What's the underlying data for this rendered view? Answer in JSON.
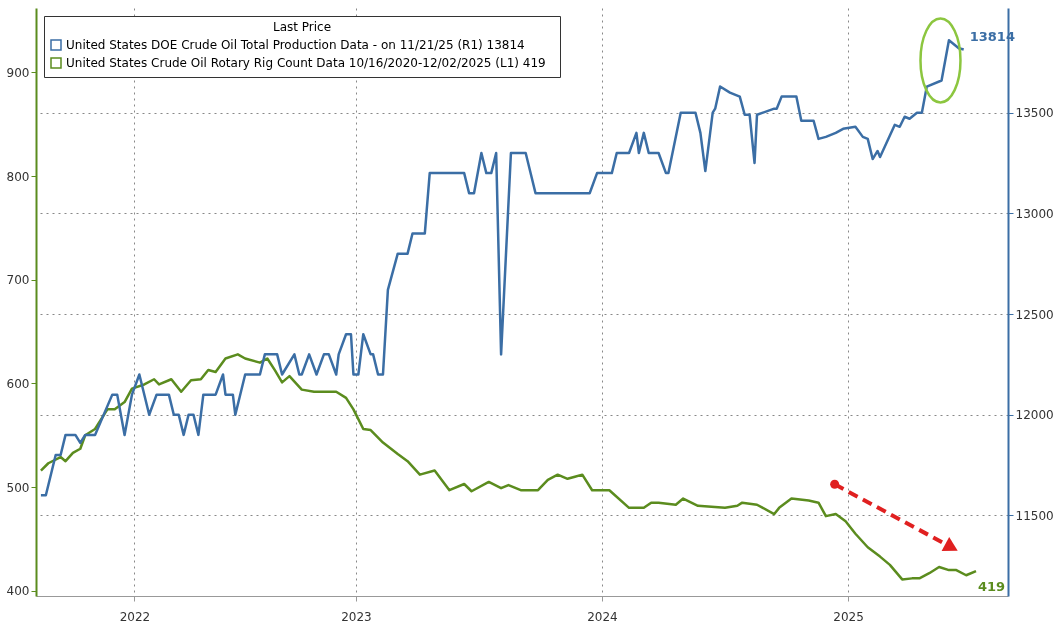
{
  "chart_data": {
    "type": "line",
    "legend_title": "Last Price",
    "legend": "top left",
    "grid": true,
    "xlim": [
      2022.1,
      2026.05
    ],
    "xticks": [
      {
        "value": 2022.5,
        "label": "2022"
      },
      {
        "value": 2023.4,
        "label": "2023"
      },
      {
        "value": 2024.4,
        "label": "2024"
      },
      {
        "value": 2025.4,
        "label": "2025"
      }
    ],
    "ylim": [
      395,
      962
    ],
    "yticks": [
      400,
      500,
      600,
      700,
      800,
      900
    ],
    "y2lim": [
      11100,
      14020
    ],
    "y2ticks": [
      11500,
      12000,
      12500,
      13000,
      13500
    ],
    "series": [
      {
        "name": "United States DOE Crude Oil Total Production Data -  on 11/21/25  (R1)   13814",
        "color": "#3b6ea5",
        "axis": "y2",
        "x": [
          2022.12,
          2022.14,
          2022.18,
          2022.2,
          2022.22,
          2022.26,
          2022.28,
          2022.3,
          2022.34,
          2022.41,
          2022.43,
          2022.46,
          2022.49,
          2022.52,
          2022.56,
          2022.59,
          2022.64,
          2022.66,
          2022.68,
          2022.7,
          2022.72,
          2022.74,
          2022.76,
          2022.78,
          2022.83,
          2022.86,
          2022.87,
          2022.9,
          2022.91,
          2022.95,
          2023.01,
          2023.03,
          2023.08,
          2023.1,
          2023.15,
          2023.17,
          2023.18,
          2023.21,
          2023.24,
          2023.27,
          2023.29,
          2023.32,
          2023.33,
          2023.36,
          2023.38,
          2023.39,
          2023.41,
          2023.43,
          2023.46,
          2023.47,
          2023.49,
          2023.51,
          2023.53,
          2023.57,
          2023.61,
          2023.63,
          2023.68,
          2023.7,
          2023.84,
          2023.86,
          2023.88,
          2023.91,
          2023.93,
          2023.95,
          2023.97,
          2023.99,
          2024.03,
          2024.07,
          2024.09,
          2024.13,
          2024.35,
          2024.38,
          2024.44,
          2024.46,
          2024.51,
          2024.54,
          2024.55,
          2024.57,
          2024.59,
          2024.63,
          2024.66,
          2024.67,
          2024.72,
          2024.78,
          2024.8,
          2024.82,
          2024.85,
          2024.86,
          2024.88,
          2024.92,
          2024.96,
          2024.98,
          2025.0,
          2025.02,
          2025.03,
          2025.1,
          2025.11,
          2025.13,
          2025.19,
          2025.21,
          2025.26,
          2025.28,
          2025.31,
          2025.35,
          2025.38,
          2025.43,
          2025.46,
          2025.48,
          2025.5,
          2025.52,
          2025.53,
          2025.59,
          2025.61,
          2025.63,
          2025.65,
          2025.68,
          2025.7,
          2025.72,
          2025.78,
          2025.81,
          2025.85,
          2025.87
        ],
        "values": [
          11600,
          11600,
          11800,
          11800,
          11900,
          11900,
          11860,
          11900,
          11900,
          12100,
          12100,
          11900,
          12100,
          12200,
          12000,
          12100,
          12100,
          12000,
          12000,
          11900,
          12000,
          12000,
          11900,
          12100,
          12100,
          12200,
          12100,
          12100,
          12000,
          12200,
          12200,
          12300,
          12300,
          12200,
          12300,
          12200,
          12200,
          12300,
          12200,
          12300,
          12300,
          12200,
          12300,
          12400,
          12400,
          12200,
          12200,
          12400,
          12300,
          12300,
          12200,
          12200,
          12620,
          12800,
          12800,
          12900,
          12900,
          13200,
          13200,
          13100,
          13100,
          13300,
          13200,
          13200,
          13300,
          12300,
          13300,
          13300,
          13300,
          13100,
          13100,
          13200,
          13200,
          13300,
          13300,
          13400,
          13300,
          13400,
          13300,
          13300,
          13200,
          13200,
          13500,
          13500,
          13400,
          13210,
          13500,
          13520,
          13630,
          13600,
          13580,
          13490,
          13490,
          13250,
          13490,
          13520,
          13520,
          13580,
          13580,
          13460,
          13460,
          13370,
          13380,
          13400,
          13420,
          13430,
          13380,
          13370,
          13270,
          13310,
          13280,
          13440,
          13430,
          13480,
          13470,
          13500,
          13500,
          13630,
          13660,
          13860,
          13820,
          13814
        ],
        "value_labels": [
          null,
          null,
          null,
          null,
          null,
          null,
          null,
          null,
          null,
          null,
          null,
          null,
          null,
          null,
          null,
          null,
          null,
          null,
          null,
          null,
          null,
          null,
          null,
          null,
          null,
          null,
          null,
          null,
          null,
          null,
          null,
          null,
          null,
          null,
          null,
          null,
          null,
          null,
          null,
          null,
          null,
          null,
          null,
          null,
          null,
          null,
          null,
          null,
          null,
          null,
          null,
          null,
          null,
          null,
          null,
          null,
          null,
          null,
          null,
          null,
          null,
          null,
          null,
          null,
          null,
          null,
          null,
          null,
          null,
          null,
          null,
          null,
          null,
          null,
          null,
          null,
          null,
          null,
          null,
          null,
          null,
          null,
          null,
          null,
          null,
          null,
          null,
          null,
          null,
          null,
          null,
          null,
          null,
          null,
          null,
          null,
          null,
          null,
          null,
          null,
          null,
          null,
          null,
          null,
          null,
          null,
          null,
          null,
          null,
          null,
          null,
          null,
          null,
          null,
          null,
          null,
          null,
          null,
          null,
          null,
          null,
          "13814"
        ]
      },
      {
        "name": "United States Crude Oil Rotary Rig Count Data 10/16/2020-12/02/2025   (L1) 419",
        "color": "#5b8c1e",
        "x": [
          2022.12,
          2022.15,
          2022.2,
          2022.22,
          2022.25,
          2022.28,
          2022.3,
          2022.34,
          2022.39,
          2022.42,
          2022.46,
          2022.49,
          2022.54,
          2022.58,
          2022.6,
          2022.65,
          2022.69,
          2022.73,
          2022.77,
          2022.8,
          2022.83,
          2022.87,
          2022.92,
          2022.95,
          2023.01,
          2023.04,
          2023.07,
          2023.1,
          2023.13,
          2023.18,
          2023.23,
          2023.32,
          2023.36,
          2023.39,
          2023.43,
          2023.46,
          2023.51,
          2023.57,
          2023.61,
          2023.66,
          2023.72,
          2023.78,
          2023.84,
          2023.87,
          2023.94,
          2023.99,
          2024.02,
          2024.07,
          2024.14,
          2024.18,
          2024.22,
          2024.26,
          2024.29,
          2024.32,
          2024.36,
          2024.43,
          2024.51,
          2024.57,
          2024.6,
          2024.63,
          2024.7,
          2024.73,
          2024.79,
          2024.9,
          2024.95,
          2024.97,
          2025.03,
          2025.1,
          2025.12,
          2025.17,
          2025.24,
          2025.28,
          2025.31,
          2025.35,
          2025.39,
          2025.43,
          2025.48,
          2025.53,
          2025.57,
          2025.62,
          2025.66,
          2025.69,
          2025.73,
          2025.77,
          2025.81,
          2025.84,
          2025.88,
          2025.92
        ],
        "values": [
          516,
          523,
          529,
          525,
          533,
          537,
          550,
          556,
          575,
          575,
          582,
          595,
          599,
          604,
          599,
          604,
          592,
          603,
          604,
          613,
          611,
          624,
          628,
          624,
          620,
          624,
          613,
          601,
          607,
          594,
          592,
          592,
          586,
          575,
          556,
          555,
          543,
          532,
          525,
          512,
          516,
          497,
          503,
          496,
          505,
          499,
          502,
          497,
          497,
          507,
          512,
          508,
          510,
          512,
          497,
          497,
          480,
          480,
          485,
          485,
          483,
          489,
          482,
          480,
          482,
          485,
          483,
          474,
          480,
          489,
          487,
          485,
          472,
          474,
          467,
          455,
          442,
          433,
          425,
          411,
          412,
          412,
          417,
          423,
          420,
          420,
          415,
          419
        ],
        "value_labels": [
          null,
          null,
          null,
          null,
          null,
          null,
          null,
          null,
          null,
          null,
          null,
          null,
          null,
          null,
          null,
          null,
          null,
          null,
          null,
          null,
          null,
          null,
          null,
          null,
          null,
          null,
          null,
          null,
          null,
          null,
          null,
          null,
          null,
          null,
          null,
          null,
          null,
          null,
          null,
          null,
          null,
          null,
          null,
          null,
          null,
          null,
          null,
          null,
          null,
          null,
          null,
          null,
          null,
          null,
          null,
          null,
          null,
          null,
          null,
          null,
          null,
          null,
          null,
          null,
          null,
          null,
          null,
          null,
          null,
          null,
          null,
          null,
          null,
          null,
          null,
          null,
          null,
          null,
          null,
          null,
          null,
          null,
          null,
          null,
          null,
          null,
          null,
          "419"
        ]
      }
    ]
  }
}
